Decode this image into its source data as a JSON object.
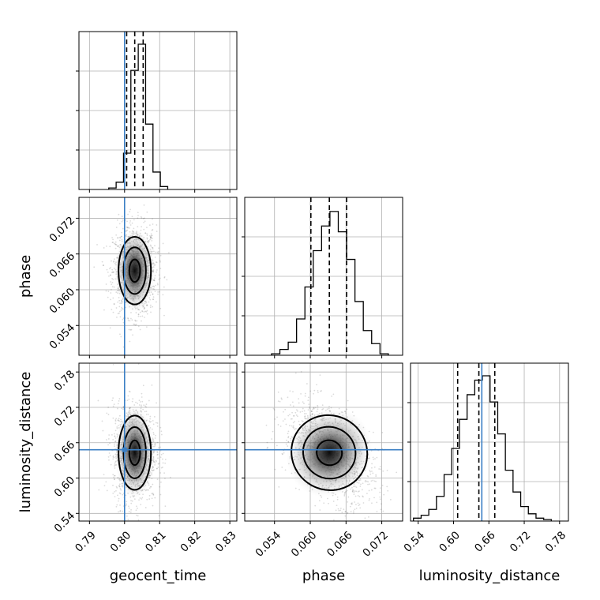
{
  "chart_data": {
    "type": "corner",
    "parameters": [
      "geocent_time",
      "phase",
      "luminosity_distance"
    ],
    "axis_labels": {
      "x": [
        "geocent_time",
        "phase",
        "luminosity_distance"
      ],
      "y": [
        "phase",
        "luminosity_distance"
      ]
    },
    "ranges": [
      [
        0.787,
        0.832
      ],
      [
        0.049,
        0.0755
      ],
      [
        0.527,
        0.795
      ]
    ],
    "ticks": {
      "geocent_time": [
        "0.79",
        "0.80",
        "0.81",
        "0.82",
        "0.83"
      ],
      "phase": [
        "0.054",
        "0.060",
        "0.066",
        "0.072"
      ],
      "luminosity_distance": [
        "0.54",
        "0.60",
        "0.66",
        "0.72",
        "0.78"
      ]
    },
    "tick_values": {
      "geocent_time": [
        0.79,
        0.8,
        0.81,
        0.82,
        0.83
      ],
      "phase": [
        0.054,
        0.06,
        0.066,
        0.072
      ],
      "luminosity_distance": [
        0.54,
        0.6,
        0.66,
        0.72,
        0.78
      ]
    },
    "injection": {
      "geocent_time": 0.8,
      "phase": null,
      "luminosity_distance": 0.648
    },
    "quantiles": {
      "geocent_time": [
        0.8006,
        0.8029,
        0.8053
      ],
      "phase": [
        0.0601,
        0.0632,
        0.0661
      ],
      "luminosity_distance": [
        0.607,
        0.643,
        0.67
      ]
    },
    "histograms": {
      "geocent_time": {
        "edges": [
          0.7955,
          0.7976,
          0.7997,
          0.8018,
          0.8039,
          0.806,
          0.8081,
          0.8102,
          0.8123
        ],
        "counts": [
          0.01,
          0.05,
          0.25,
          0.82,
          1.0,
          0.45,
          0.12,
          0.02
        ]
      },
      "phase": {
        "edges": [
          0.0535,
          0.0549,
          0.0563,
          0.0577,
          0.0591,
          0.0605,
          0.0619,
          0.0633,
          0.0647,
          0.0661,
          0.0675,
          0.0689,
          0.0703,
          0.0717,
          0.0731
        ],
        "counts": [
          0.01,
          0.04,
          0.09,
          0.25,
          0.47,
          0.72,
          0.89,
          0.99,
          0.85,
          0.66,
          0.37,
          0.17,
          0.08,
          0.01
        ]
      },
      "luminosity_distance": {
        "edges": [
          0.532,
          0.545,
          0.558,
          0.571,
          0.584,
          0.597,
          0.61,
          0.623,
          0.636,
          0.649,
          0.662,
          0.675,
          0.688,
          0.701,
          0.714,
          0.727,
          0.74,
          0.753,
          0.766
        ],
        "counts": [
          0.02,
          0.04,
          0.08,
          0.17,
          0.32,
          0.5,
          0.7,
          0.87,
          0.97,
          1.0,
          0.82,
          0.6,
          0.35,
          0.2,
          0.1,
          0.05,
          0.02,
          0.01
        ]
      }
    },
    "grid": true
  }
}
